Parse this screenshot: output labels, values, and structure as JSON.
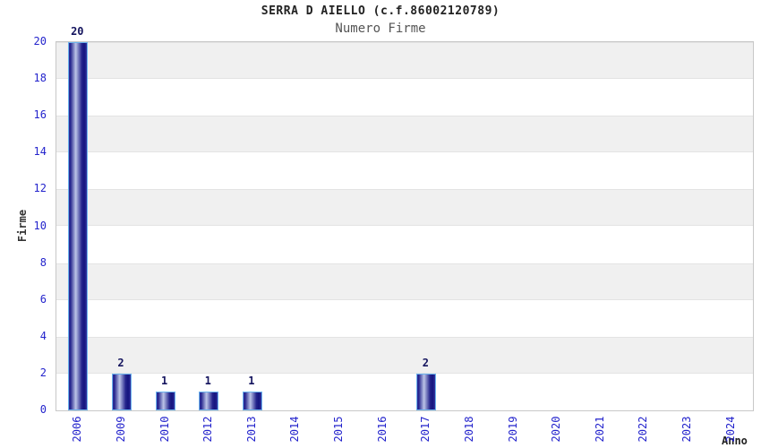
{
  "chart_data": {
    "type": "bar",
    "title": "SERRA D AIELLO (c.f.86002120789)",
    "subtitle": "Numero Firme",
    "xlabel": "Anno",
    "ylabel": "Firme",
    "categories": [
      "2006",
      "2009",
      "2010",
      "2012",
      "2013",
      "2014",
      "2015",
      "2016",
      "2017",
      "2018",
      "2019",
      "2020",
      "2021",
      "2022",
      "2023",
      "2024"
    ],
    "values": [
      20,
      2,
      1,
      1,
      1,
      0,
      0,
      0,
      2,
      0,
      0,
      0,
      0,
      0,
      0,
      0
    ],
    "ylim": [
      0,
      20
    ],
    "ytick_step": 2,
    "grid": "horizontal-bands",
    "legend": "none",
    "colors": {
      "title": "#222222",
      "subtitle": "#555555",
      "tick_label": "#2323cc",
      "bar_value_label": "#14145e",
      "band_gray": "#f0f0f0",
      "band_white": "#ffffff",
      "band_outline": "#e3e3e3",
      "plot_frame": "#c8c8c8",
      "bar_border": "#6cb4ee",
      "bar_dark": "#23238c",
      "bar_darker": "#15157e",
      "bar_edge": "#32329e",
      "bar_light": "#bcc4e8"
    }
  }
}
